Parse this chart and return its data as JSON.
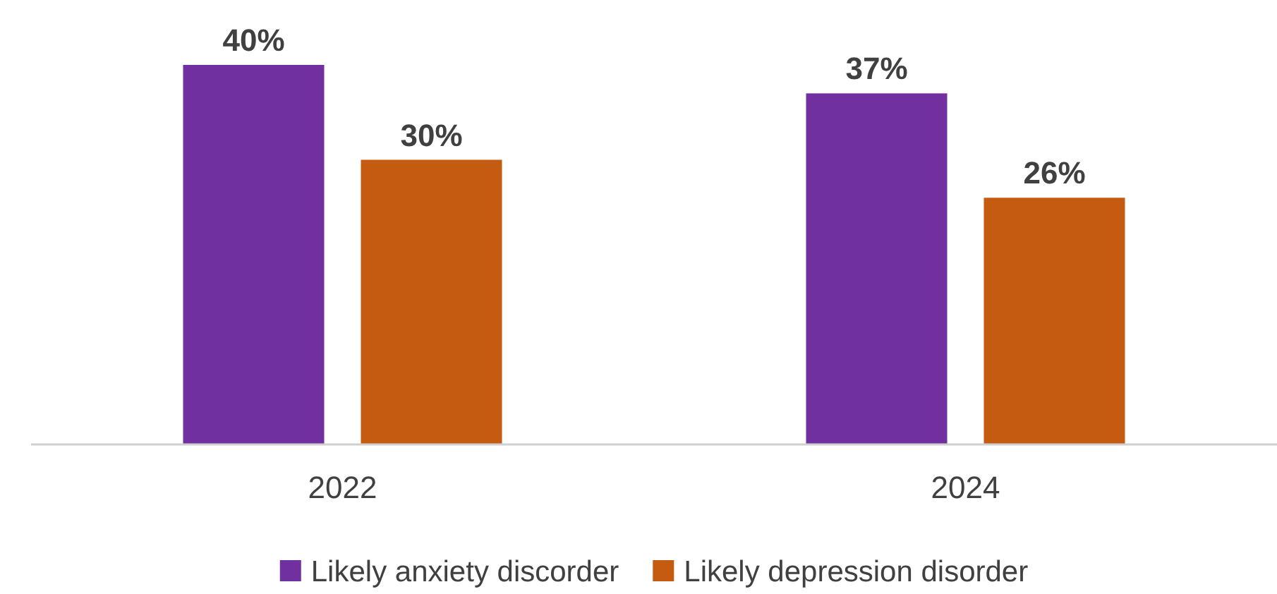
{
  "chart_data": {
    "type": "bar",
    "categories": [
      "2022",
      "2024"
    ],
    "series": [
      {
        "name": "Likely anxiety discorder",
        "color": "#7030a0",
        "values": [
          40,
          37
        ],
        "value_labels": [
          "40%",
          "37%"
        ]
      },
      {
        "name": "Likely depression disorder",
        "color": "#c55a11",
        "values": [
          30,
          26
        ],
        "value_labels": [
          "30%",
          "26%"
        ]
      }
    ],
    "legend": "bottom"
  }
}
